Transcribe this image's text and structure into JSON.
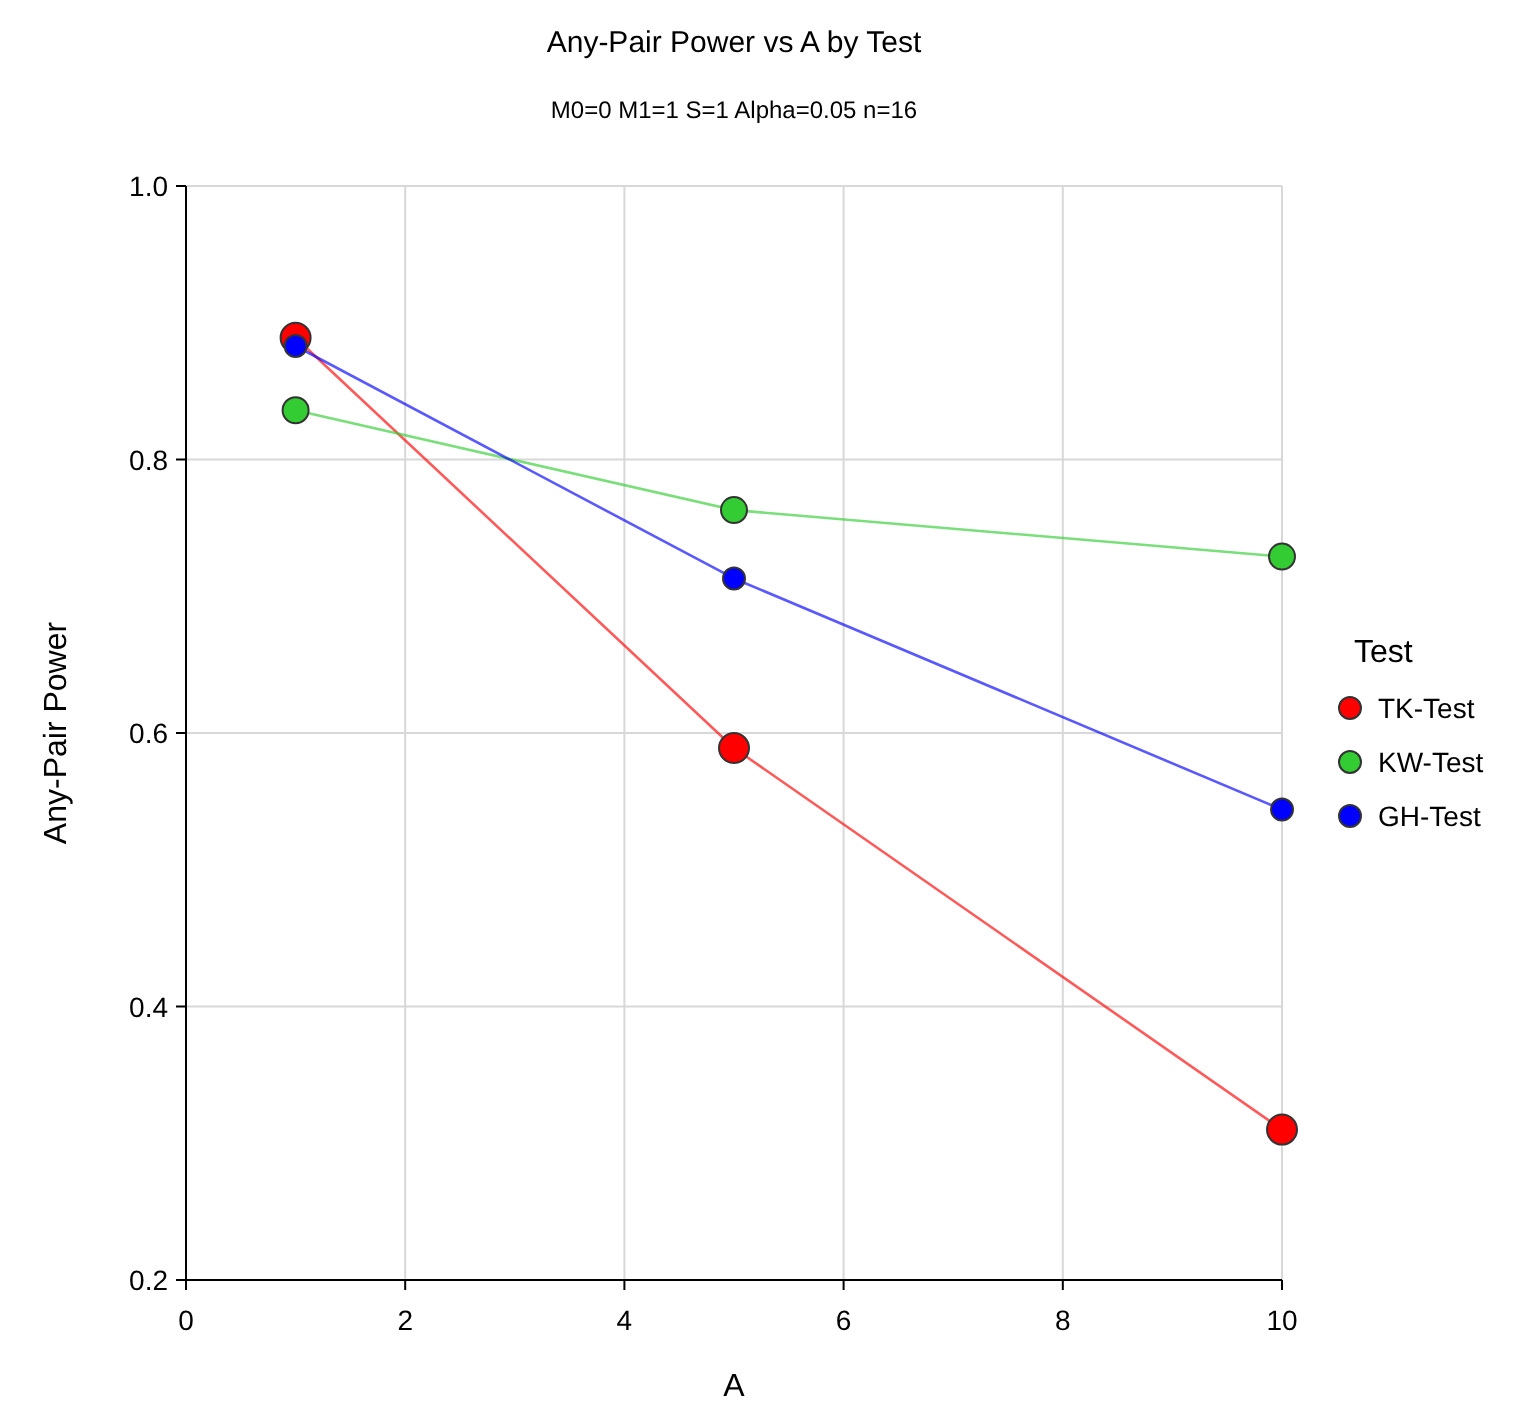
{
  "chart_data": {
    "type": "line",
    "title": "Any-Pair Power vs A by Test",
    "subtitle": "M0=0 M1=1 S=1 Alpha=0.05 n=16",
    "xlabel": "A",
    "ylabel": "Any-Pair Power",
    "legend_title": "Test",
    "x": [
      1,
      5,
      10
    ],
    "series": [
      {
        "name": "TK-Test",
        "color": "#ff0000",
        "values": [
          0.889,
          0.589,
          0.31
        ]
      },
      {
        "name": "KW-Test",
        "color": "#33cc33",
        "values": [
          0.836,
          0.763,
          0.729
        ]
      },
      {
        "name": "GH-Test",
        "color": "#0000ff",
        "values": [
          0.883,
          0.713,
          0.544
        ]
      }
    ],
    "xlim": [
      0,
      10
    ],
    "xticks": [
      0,
      2,
      4,
      6,
      8,
      10
    ],
    "ylim": [
      0.2,
      1.0
    ],
    "yticks": [
      {
        "value": 0.2,
        "label": "0.2"
      },
      {
        "value": 0.4,
        "label": "0.4"
      },
      {
        "value": 0.6,
        "label": "0.6"
      },
      {
        "value": 0.8,
        "label": "0.8"
      },
      {
        "value": 1.0,
        "label": "1.0"
      }
    ],
    "grid": true,
    "legend": "right",
    "marker": "circle",
    "line_style": "solid"
  }
}
